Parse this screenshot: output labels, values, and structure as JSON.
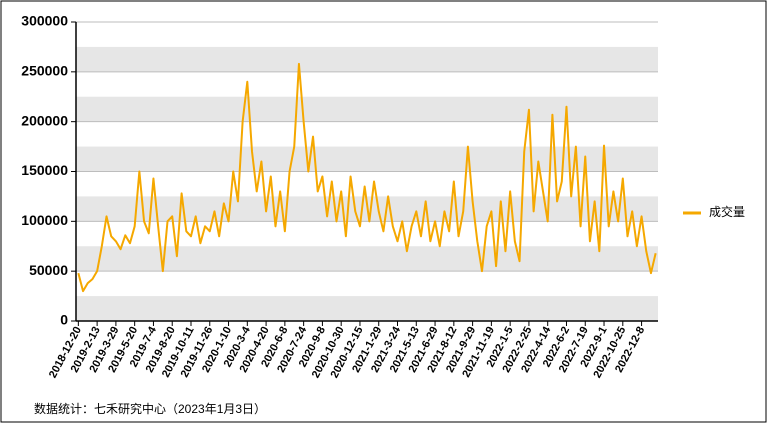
{
  "chart_data": {
    "type": "line",
    "categories": [
      "2018-12-20",
      null,
      null,
      null,
      "2019-2-13",
      null,
      null,
      null,
      "2019-3-29",
      null,
      null,
      null,
      "2019-5-20",
      null,
      null,
      null,
      "2019-7-4",
      null,
      null,
      null,
      "2019-8-20",
      null,
      null,
      null,
      "2019-10-11",
      null,
      null,
      null,
      "2019-11-26",
      null,
      null,
      null,
      "2020-1-10",
      null,
      null,
      null,
      "2020-3-4",
      null,
      null,
      null,
      "2020-4-20",
      null,
      null,
      null,
      "2020-6-8",
      null,
      null,
      null,
      "2020-7-24",
      null,
      null,
      null,
      "2020-9-8",
      null,
      null,
      null,
      "2020-10-30",
      null,
      null,
      null,
      "2020-12-15",
      null,
      null,
      null,
      "2021-1-29",
      null,
      null,
      null,
      "2021-3-24",
      null,
      null,
      null,
      "2021-5-13",
      null,
      null,
      null,
      "2021-6-29",
      null,
      null,
      null,
      "2021-8-12",
      null,
      null,
      null,
      "2021-9-29",
      null,
      null,
      null,
      "2021-11-19",
      null,
      null,
      null,
      "2022-1-5",
      null,
      null,
      null,
      "2022-2-25",
      null,
      null,
      null,
      "2022-4-14",
      null,
      null,
      null,
      "2022-6-2",
      null,
      null,
      null,
      "2022-7-19",
      null,
      null,
      null,
      "2022-9-1",
      null,
      null,
      null,
      "2022-10-25",
      null,
      null,
      null,
      "2022-12-8",
      null,
      null,
      null
    ],
    "series": [
      {
        "name": "成交量",
        "color": "#f5a800",
        "values": [
          48000,
          30000,
          38000,
          42000,
          50000,
          75000,
          105000,
          85000,
          80000,
          72000,
          86000,
          78000,
          95000,
          150000,
          100000,
          88000,
          143000,
          95000,
          50000,
          100000,
          105000,
          65000,
          128000,
          90000,
          85000,
          105000,
          78000,
          95000,
          90000,
          110000,
          85000,
          118000,
          100000,
          150000,
          120000,
          200000,
          240000,
          170000,
          130000,
          160000,
          110000,
          145000,
          95000,
          130000,
          90000,
          150000,
          175000,
          258000,
          200000,
          150000,
          185000,
          130000,
          145000,
          105000,
          140000,
          100000,
          130000,
          85000,
          145000,
          110000,
          95000,
          135000,
          100000,
          140000,
          110000,
          90000,
          125000,
          95000,
          80000,
          100000,
          70000,
          95000,
          110000,
          85000,
          120000,
          80000,
          100000,
          75000,
          110000,
          90000,
          140000,
          85000,
          110000,
          175000,
          120000,
          80000,
          50000,
          95000,
          110000,
          55000,
          120000,
          70000,
          130000,
          80000,
          60000,
          170000,
          212000,
          110000,
          160000,
          130000,
          100000,
          207000,
          120000,
          140000,
          215000,
          125000,
          175000,
          95000,
          165000,
          80000,
          120000,
          70000,
          176000,
          95000,
          130000,
          100000,
          143000,
          85000,
          110000,
          75000,
          105000,
          70000,
          48000,
          68000
        ]
      }
    ],
    "ylim": [
      0,
      300000
    ],
    "yticks": [
      0,
      50000,
      100000,
      150000,
      200000,
      250000,
      300000
    ],
    "grid": true,
    "legend": "right",
    "source": "数据统计：七禾研究中心（2023年1月3日）"
  }
}
